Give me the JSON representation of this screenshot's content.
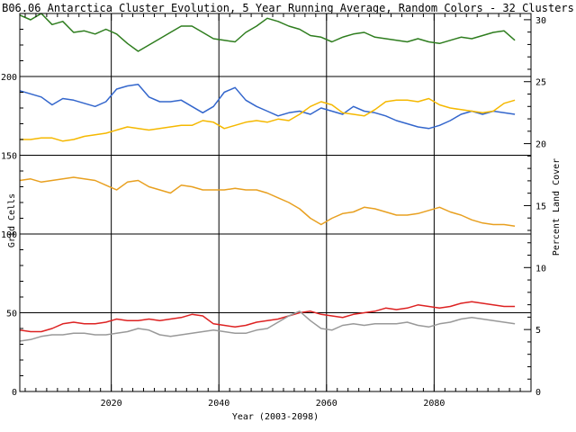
{
  "chart_data": {
    "type": "line",
    "title": "B06.06 Antarctica Cluster Evolution, 5 Year Running Average, Random Colors - 32 Clusters",
    "xlabel": "Year (2003-2098)",
    "ylabel": "Grid Cells",
    "y2label": "Percent Land Cover",
    "xlim": [
      2003,
      2098
    ],
    "ylim": [
      0,
      240
    ],
    "y2lim": [
      0,
      30.5
    ],
    "x_ticks": [
      2020,
      2040,
      2060,
      2080
    ],
    "y_ticks": [
      0,
      50,
      100,
      150,
      200
    ],
    "y2_ticks": [
      0,
      5,
      10,
      15,
      20,
      25,
      30
    ],
    "grid": true,
    "series": [
      {
        "color": "#2e7d1e",
        "x": [
          2003,
          2005,
          2007,
          2009,
          2011,
          2013,
          2015,
          2017,
          2019,
          2021,
          2023,
          2025,
          2027,
          2029,
          2031,
          2033,
          2035,
          2037,
          2039,
          2041,
          2043,
          2045,
          2047,
          2049,
          2051,
          2053,
          2055,
          2057,
          2059,
          2061,
          2063,
          2065,
          2067,
          2069,
          2071,
          2073,
          2075,
          2077,
          2079,
          2081,
          2083,
          2085,
          2087,
          2089,
          2091,
          2093,
          2095
        ],
        "y": [
          239,
          236,
          240,
          233,
          235,
          228,
          229,
          227,
          230,
          227,
          221,
          216,
          220,
          224,
          228,
          232,
          232,
          228,
          224,
          223,
          222,
          228,
          232,
          237,
          235,
          232,
          230,
          226,
          225,
          222,
          225,
          227,
          228,
          225,
          224,
          223,
          222,
          224,
          222,
          221,
          223,
          225,
          224,
          226,
          228,
          229,
          223
        ]
      },
      {
        "color": "#3366cc",
        "x": [
          2003,
          2005,
          2007,
          2009,
          2011,
          2013,
          2015,
          2017,
          2019,
          2021,
          2023,
          2025,
          2027,
          2029,
          2031,
          2033,
          2035,
          2037,
          2039,
          2041,
          2043,
          2045,
          2047,
          2049,
          2051,
          2053,
          2055,
          2057,
          2059,
          2061,
          2063,
          2065,
          2067,
          2069,
          2071,
          2073,
          2075,
          2077,
          2079,
          2081,
          2083,
          2085,
          2087,
          2089,
          2091,
          2093,
          2095
        ],
        "y": [
          191,
          189,
          187,
          182,
          186,
          185,
          183,
          181,
          184,
          192,
          194,
          195,
          187,
          184,
          184,
          185,
          181,
          177,
          181,
          190,
          193,
          185,
          181,
          178,
          175,
          177,
          178,
          176,
          180,
          178,
          176,
          181,
          178,
          177,
          175,
          172,
          170,
          168,
          167,
          169,
          172,
          176,
          178,
          176,
          178,
          177,
          176
        ]
      },
      {
        "color": "#f5b800",
        "x": [
          2003,
          2005,
          2007,
          2009,
          2011,
          2013,
          2015,
          2017,
          2019,
          2021,
          2023,
          2025,
          2027,
          2029,
          2031,
          2033,
          2035,
          2037,
          2039,
          2041,
          2043,
          2045,
          2047,
          2049,
          2051,
          2053,
          2055,
          2057,
          2059,
          2061,
          2063,
          2065,
          2067,
          2069,
          2071,
          2073,
          2075,
          2077,
          2079,
          2081,
          2083,
          2085,
          2087,
          2089,
          2091,
          2093,
          2095
        ],
        "y": [
          160,
          160,
          161,
          161,
          159,
          160,
          162,
          163,
          164,
          166,
          168,
          167,
          166,
          167,
          168,
          169,
          169,
          172,
          171,
          167,
          169,
          171,
          172,
          171,
          173,
          172,
          176,
          181,
          184,
          182,
          177,
          176,
          175,
          179,
          184,
          185,
          185,
          184,
          186,
          182,
          180,
          179,
          178,
          177,
          178,
          183,
          185
        ]
      },
      {
        "color": "#e8a020",
        "x": [
          2003,
          2005,
          2007,
          2009,
          2011,
          2013,
          2015,
          2017,
          2019,
          2021,
          2023,
          2025,
          2027,
          2029,
          2031,
          2033,
          2035,
          2037,
          2039,
          2041,
          2043,
          2045,
          2047,
          2049,
          2051,
          2053,
          2055,
          2057,
          2059,
          2061,
          2063,
          2065,
          2067,
          2069,
          2071,
          2073,
          2075,
          2077,
          2079,
          2081,
          2083,
          2085,
          2087,
          2089,
          2091,
          2093,
          2095
        ],
        "y": [
          134,
          135,
          133,
          134,
          135,
          136,
          135,
          134,
          131,
          128,
          133,
          134,
          130,
          128,
          126,
          131,
          130,
          128,
          128,
          128,
          129,
          128,
          128,
          126,
          123,
          120,
          116,
          110,
          106,
          110,
          113,
          114,
          117,
          116,
          114,
          112,
          112,
          113,
          115,
          117,
          114,
          112,
          109,
          107,
          106,
          106,
          105
        ]
      },
      {
        "color": "#dd2222",
        "x": [
          2003,
          2005,
          2007,
          2009,
          2011,
          2013,
          2015,
          2017,
          2019,
          2021,
          2023,
          2025,
          2027,
          2029,
          2031,
          2033,
          2035,
          2037,
          2039,
          2041,
          2043,
          2045,
          2047,
          2049,
          2051,
          2053,
          2055,
          2057,
          2059,
          2061,
          2063,
          2065,
          2067,
          2069,
          2071,
          2073,
          2075,
          2077,
          2079,
          2081,
          2083,
          2085,
          2087,
          2089,
          2091,
          2093,
          2095
        ],
        "y": [
          39,
          38,
          38,
          40,
          43,
          44,
          43,
          43,
          44,
          46,
          45,
          45,
          46,
          45,
          46,
          47,
          49,
          48,
          43,
          42,
          41,
          42,
          44,
          45,
          46,
          48,
          50,
          51,
          49,
          48,
          47,
          49,
          50,
          51,
          53,
          52,
          53,
          55,
          54,
          53,
          54,
          56,
          57,
          56,
          55,
          54,
          54
        ]
      },
      {
        "color": "#999999",
        "x": [
          2003,
          2005,
          2007,
          2009,
          2011,
          2013,
          2015,
          2017,
          2019,
          2021,
          2023,
          2025,
          2027,
          2029,
          2031,
          2033,
          2035,
          2037,
          2039,
          2041,
          2043,
          2045,
          2047,
          2049,
          2051,
          2053,
          2055,
          2057,
          2059,
          2061,
          2063,
          2065,
          2067,
          2069,
          2071,
          2073,
          2075,
          2077,
          2079,
          2081,
          2083,
          2085,
          2087,
          2089,
          2091,
          2093,
          2095
        ],
        "y": [
          32,
          33,
          35,
          36,
          36,
          37,
          37,
          36,
          36,
          37,
          38,
          40,
          39,
          36,
          35,
          36,
          37,
          38,
          39,
          38,
          37,
          37,
          39,
          40,
          44,
          48,
          51,
          45,
          40,
          39,
          42,
          43,
          42,
          43,
          43,
          43,
          44,
          42,
          41,
          43,
          44,
          46,
          47,
          46,
          45,
          44,
          43
        ]
      }
    ]
  }
}
